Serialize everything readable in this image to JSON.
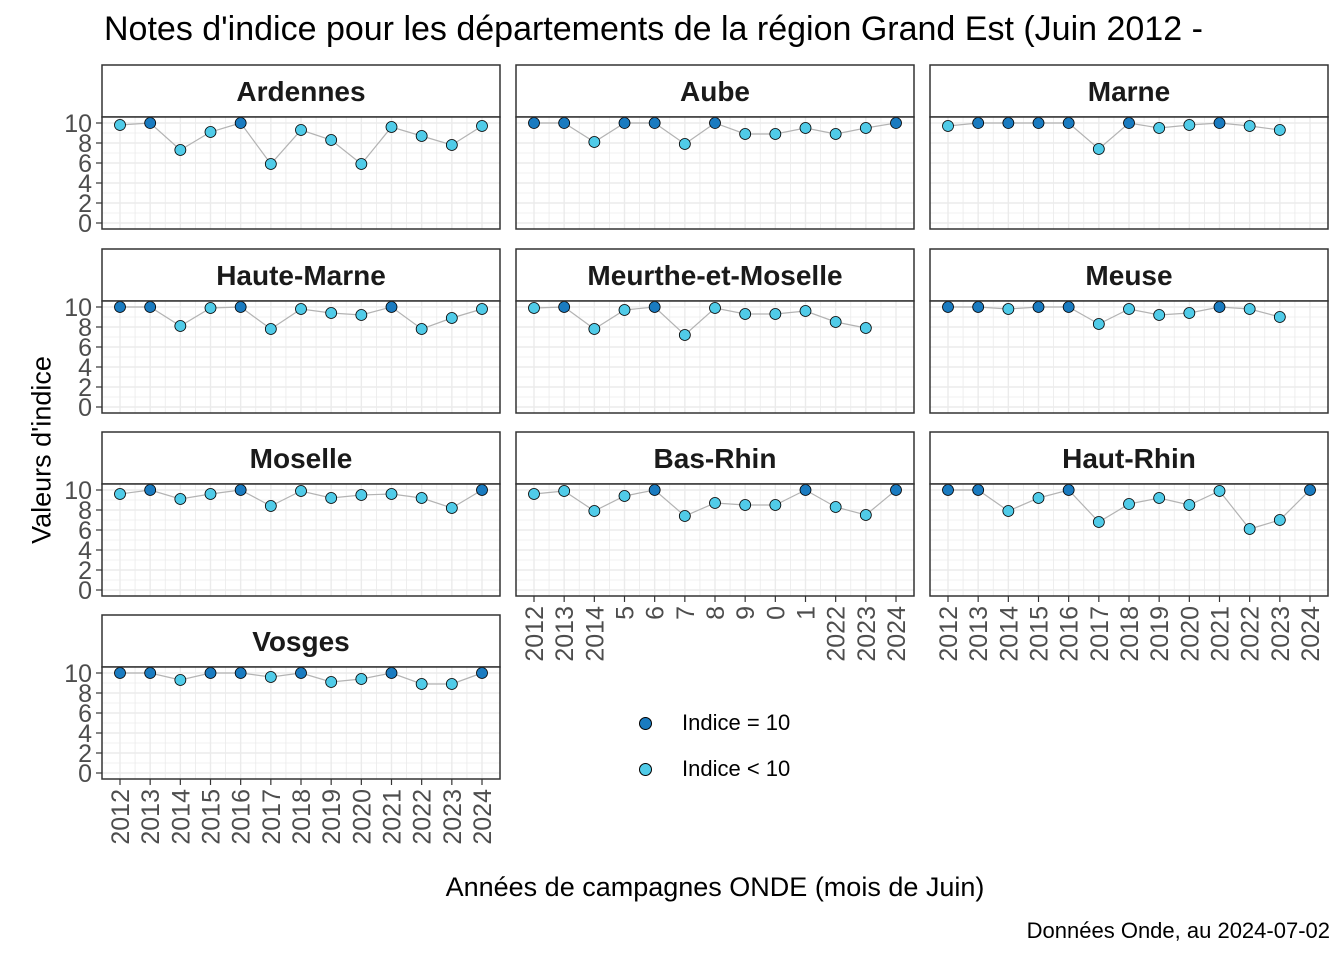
{
  "title": "Notes d'indice pour les départements de la région Grand Est (Juin 2012 -",
  "caption": "Données Onde, au 2024-07-02",
  "colors": {
    "eq10": "#1a7bc0",
    "lt10": "#50cbe8",
    "line": "#b3b3b3",
    "grid": "#ebebeb",
    "strip_bg": "#ffffff"
  },
  "legend": [
    {
      "label": "Indice = 10",
      "color": "#1a7bc0"
    },
    {
      "label": "Indice < 10",
      "color": "#50cbe8"
    }
  ],
  "chart_data": {
    "type": "scatter",
    "xlabel": "Années de campagnes ONDE (mois de Juin)",
    "ylabel": "Valeurs d'indice",
    "ylim": [
      0,
      10
    ],
    "yticks": [
      0,
      2,
      4,
      6,
      8,
      10
    ],
    "x": [
      "2012",
      "2013",
      "2014",
      "2015",
      "2016",
      "2017",
      "2018",
      "2019",
      "2020",
      "2021",
      "2022",
      "2023",
      "2024"
    ],
    "x_tick_labels_middle": [
      "2012",
      "2013",
      "2014",
      "5",
      "6",
      "7",
      "8",
      "9",
      "0",
      "1",
      "2022",
      "2023",
      "2024"
    ],
    "grid": true,
    "legend_position": "bottom-center",
    "panels": [
      {
        "name": "Ardennes",
        "values": [
          9.8,
          10,
          7.3,
          9.1,
          10,
          5.9,
          9.3,
          8.3,
          5.9,
          9.6,
          8.7,
          7.8,
          9.7
        ]
      },
      {
        "name": "Aube",
        "values": [
          10,
          10,
          8.1,
          10,
          10,
          7.9,
          10,
          8.9,
          8.9,
          9.5,
          8.9,
          9.5,
          10
        ]
      },
      {
        "name": "Marne",
        "values": [
          9.7,
          10,
          10,
          10,
          10,
          7.4,
          10,
          9.5,
          9.8,
          10,
          9.7,
          9.3,
          null
        ]
      },
      {
        "name": "Haute-Marne",
        "values": [
          10,
          10,
          8.1,
          9.9,
          10,
          7.8,
          9.8,
          9.4,
          9.2,
          10,
          7.8,
          8.9,
          9.8
        ]
      },
      {
        "name": "Meurthe-et-Moselle",
        "values": [
          9.9,
          10,
          7.8,
          9.7,
          10,
          7.2,
          9.9,
          9.3,
          9.3,
          9.6,
          8.5,
          7.9,
          null
        ]
      },
      {
        "name": "Meuse",
        "values": [
          10,
          10,
          9.8,
          10,
          10,
          8.3,
          9.8,
          9.2,
          9.4,
          10,
          9.8,
          9.0,
          null
        ]
      },
      {
        "name": "Moselle",
        "values": [
          9.6,
          10,
          9.1,
          9.6,
          10,
          8.4,
          9.9,
          9.2,
          9.5,
          9.6,
          9.2,
          8.2,
          10
        ]
      },
      {
        "name": "Bas-Rhin",
        "values": [
          9.6,
          9.9,
          7.9,
          9.4,
          10,
          7.4,
          8.7,
          8.5,
          8.5,
          10,
          8.3,
          7.5,
          10
        ]
      },
      {
        "name": "Haut-Rhin",
        "values": [
          10,
          10,
          7.9,
          9.2,
          10,
          6.8,
          8.6,
          9.2,
          8.5,
          9.9,
          6.1,
          7.0,
          10
        ]
      },
      {
        "name": "Vosges",
        "values": [
          10,
          10,
          9.3,
          10,
          10,
          9.6,
          10,
          9.1,
          9.4,
          10,
          8.9,
          8.9,
          10
        ]
      }
    ]
  }
}
